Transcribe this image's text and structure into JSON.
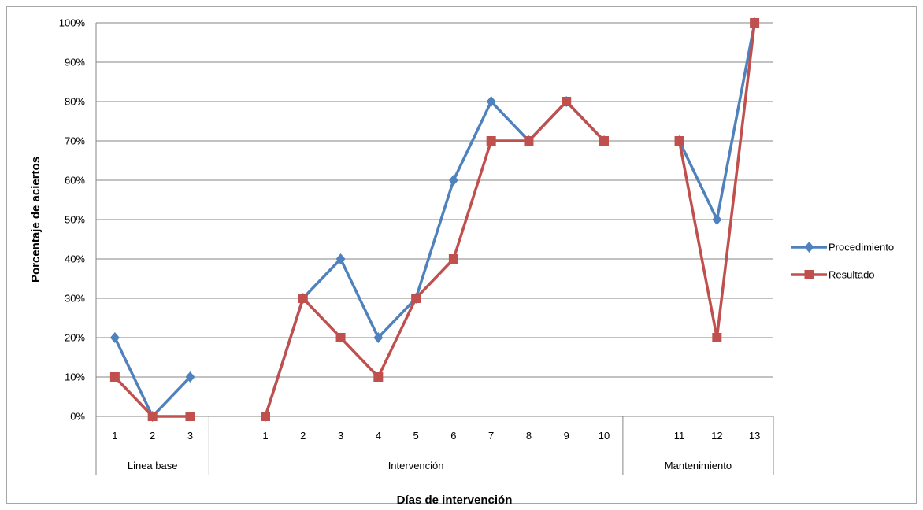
{
  "chart_data": {
    "type": "line",
    "title": "",
    "xlabel": "Días de intervención",
    "ylabel": "Porcentaje de aciertos",
    "ylim": [
      0,
      100
    ],
    "y_ticks": [
      "0%",
      "10%",
      "20%",
      "30%",
      "40%",
      "50%",
      "60%",
      "70%",
      "80%",
      "90%",
      "100%"
    ],
    "grid": true,
    "legend_position": "right",
    "categories": [
      "1",
      "2",
      "3",
      "",
      "1",
      "2",
      "3",
      "4",
      "5",
      "6",
      "7",
      "8",
      "9",
      "10",
      "",
      "11",
      "12",
      "13"
    ],
    "groups": [
      {
        "label": "Linea base",
        "start": 0,
        "end": 3
      },
      {
        "label": "Intervención",
        "start": 3,
        "end": 14
      },
      {
        "label": "Mantenimiento",
        "start": 14,
        "end": 18
      }
    ],
    "series": [
      {
        "name": "Procedimiento",
        "color": "#4f81bd",
        "marker": "diamond",
        "values": [
          20,
          0,
          10,
          null,
          0,
          30,
          40,
          20,
          30,
          60,
          80,
          70,
          80,
          70,
          null,
          70,
          50,
          100
        ]
      },
      {
        "name": "Resultado",
        "color": "#c0504d",
        "marker": "square",
        "values": [
          10,
          0,
          0,
          null,
          0,
          30,
          20,
          10,
          30,
          40,
          70,
          70,
          80,
          70,
          null,
          70,
          20,
          100
        ]
      }
    ]
  }
}
